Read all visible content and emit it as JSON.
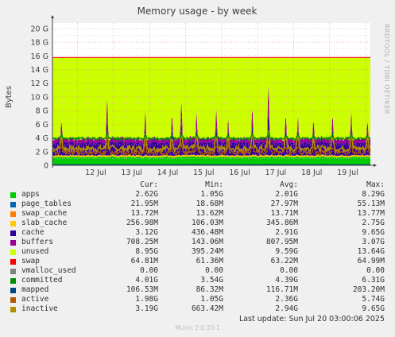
{
  "chart_data": {
    "type": "area",
    "title": "Memory usage - by week",
    "ylabel": "Bytes",
    "side_label": "RRDTOOL / TOBI OETIKER",
    "y_ticks": [
      "0",
      "2 G",
      "4 G",
      "6 G",
      "8 G",
      "10 G",
      "12 G",
      "14 G",
      "16 G",
      "18 G",
      "20 G"
    ],
    "ylim": [
      0,
      20.8
    ],
    "x_ticks": [
      "12 Jul",
      "13 Jul",
      "14 Jul",
      "15 Jul",
      "16 Jul",
      "17 Jul",
      "18 Jul",
      "19 Jul"
    ],
    "x_range_days": [
      11.3,
      20.13
    ],
    "grid": true,
    "legend_headers": [
      "Cur:",
      "Min:",
      "Avg:",
      "Max:"
    ],
    "series": [
      {
        "name": "apps",
        "color": "#00cc00",
        "cur": "2.62G",
        "min": "1.05G",
        "avg": "2.01G",
        "max": "8.29G"
      },
      {
        "name": "page_tables",
        "color": "#0066b3",
        "cur": "21.95M",
        "min": "18.68M",
        "avg": "27.97M",
        "max": "55.13M"
      },
      {
        "name": "swap_cache",
        "color": "#ff8000",
        "cur": "13.72M",
        "min": "13.62M",
        "avg": "13.71M",
        "max": "13.77M"
      },
      {
        "name": "slab_cache",
        "color": "#ffcc00",
        "cur": "256.98M",
        "min": "106.03M",
        "avg": "345.86M",
        "max": "2.75G"
      },
      {
        "name": "cache",
        "color": "#330099",
        "cur": "3.12G",
        "min": "436.48M",
        "avg": "2.91G",
        "max": "9.65G"
      },
      {
        "name": "buffers",
        "color": "#990099",
        "cur": "708.25M",
        "min": "143.06M",
        "avg": "807.95M",
        "max": "3.07G"
      },
      {
        "name": "unused",
        "color": "#ccff00",
        "cur": "8.95G",
        "min": "395.24M",
        "avg": "9.59G",
        "max": "13.64G"
      },
      {
        "name": "swap",
        "color": "#ff0000",
        "cur": "64.81M",
        "min": "61.36M",
        "avg": "63.22M",
        "max": "64.99M"
      },
      {
        "name": "vmalloc_used",
        "color": "#808080",
        "cur": "0.00",
        "min": "0.00",
        "avg": "0.00",
        "max": "0.00"
      },
      {
        "name": "committed",
        "color": "#008f00",
        "cur": "4.01G",
        "min": "3.54G",
        "avg": "4.39G",
        "max": "6.31G"
      },
      {
        "name": "mapped",
        "color": "#00487d",
        "cur": "106.53M",
        "min": "86.32M",
        "avg": "116.71M",
        "max": "203.20M"
      },
      {
        "name": "active",
        "color": "#b35a00",
        "cur": "1.98G",
        "min": "1.05G",
        "avg": "2.36G",
        "max": "5.74G"
      },
      {
        "name": "inactive",
        "color": "#b38f00",
        "cur": "3.19G",
        "min": "663.42M",
        "avg": "2.94G",
        "max": "9.65G"
      }
    ],
    "top_of_stack_gb": 15.7,
    "typical_values_gb": {
      "apps": 2.0,
      "cache": 2.9,
      "buffers": 0.8,
      "committed": 4.4,
      "active": 2.4,
      "inactive": 2.9
    },
    "spikes": [
      {
        "x_day": 11.55,
        "top_gb": 7.2
      },
      {
        "x_day": 12.82,
        "top_gb": 10.6
      },
      {
        "x_day": 13.88,
        "top_gb": 8.7
      },
      {
        "x_day": 14.62,
        "top_gb": 8.2
      },
      {
        "x_day": 14.88,
        "top_gb": 10.2
      },
      {
        "x_day": 15.3,
        "top_gb": 8.5
      },
      {
        "x_day": 15.85,
        "top_gb": 9.0
      },
      {
        "x_day": 16.18,
        "top_gb": 7.6
      },
      {
        "x_day": 16.85,
        "top_gb": 9.1
      },
      {
        "x_day": 17.3,
        "top_gb": 12.6
      },
      {
        "x_day": 17.78,
        "top_gb": 8.0
      },
      {
        "x_day": 18.12,
        "top_gb": 7.9
      },
      {
        "x_day": 18.55,
        "top_gb": 7.3
      },
      {
        "x_day": 19.08,
        "top_gb": 8.0
      },
      {
        "x_day": 19.6,
        "top_gb": 8.6
      },
      {
        "x_day": 20.05,
        "top_gb": 7.2
      }
    ]
  },
  "footer": {
    "last_update_label": "Last update:",
    "last_update_value": "Sun Jul 20 03:00:06 2025",
    "generator": "Munin 2.0.33-1"
  }
}
